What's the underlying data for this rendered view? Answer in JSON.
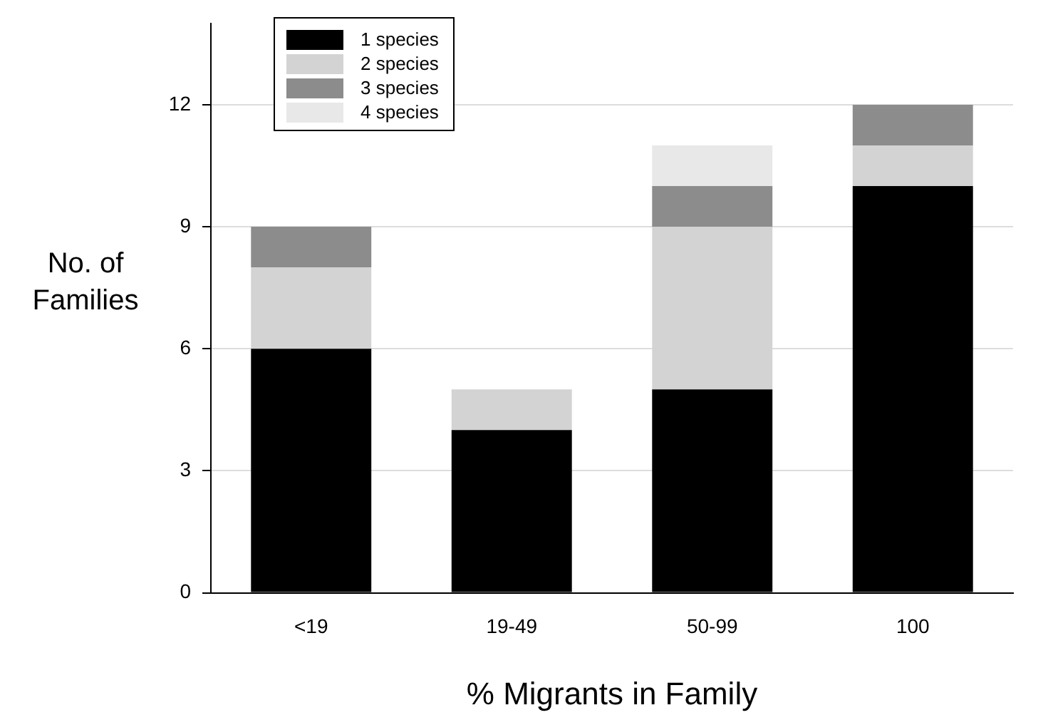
{
  "chart_data": {
    "type": "bar",
    "stacked": true,
    "xlabel": "% Migrants in Family",
    "ylabel": "No. of Families",
    "categories": [
      "<19",
      "19-49",
      "50-99",
      "100"
    ],
    "series": [
      {
        "name": "1 species",
        "color": "#000000",
        "values": [
          6,
          4,
          5,
          10
        ]
      },
      {
        "name": "2 species",
        "color": "#d3d3d3",
        "values": [
          2,
          1,
          4,
          1
        ]
      },
      {
        "name": "3 species",
        "color": "#8c8c8c",
        "values": [
          1,
          0,
          1,
          1
        ]
      },
      {
        "name": "4 species",
        "color": "#e8e8e8",
        "values": [
          0,
          0,
          1,
          0
        ]
      }
    ],
    "ylim": [
      0,
      14
    ],
    "yticks": [
      0,
      3,
      6,
      9,
      12
    ],
    "grid": "y",
    "legend": "top left"
  }
}
